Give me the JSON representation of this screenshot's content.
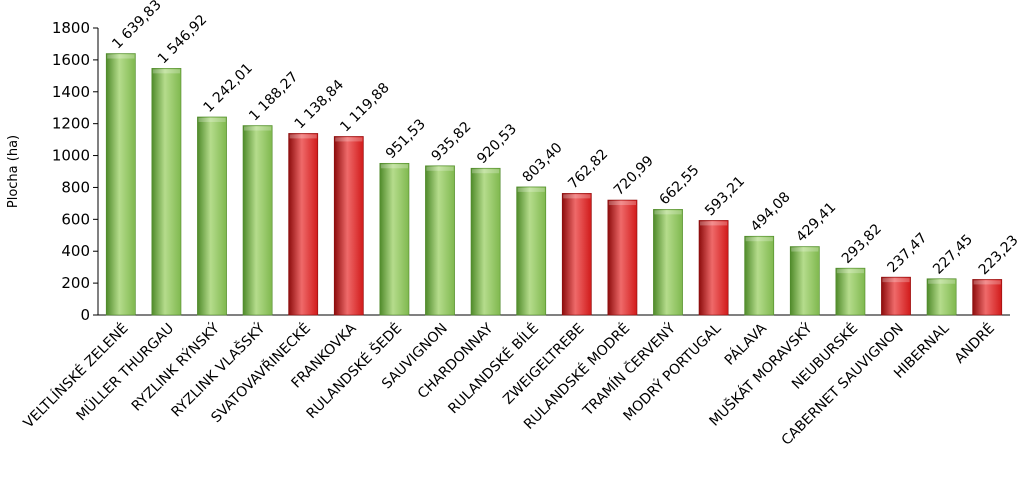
{
  "chart_data": {
    "type": "bar",
    "ylabel": "Plocha (ha)",
    "ylim": [
      0,
      1800
    ],
    "yticks": [
      "0",
      "200",
      "400",
      "600",
      "800",
      "1000",
      "1200",
      "1400",
      "1600",
      "1800"
    ],
    "grid": false,
    "categories": [
      "VELTLÍNSKÉ ZELENÉ",
      "MÜLLER THURGAU",
      "RYZLINK RÝNSKÝ",
      "RYZLINK VLAŠSKÝ",
      "SVATOVAVŘINECKÉ",
      "FRANKOVKA",
      "RULANDSKÉ ŠEDÉ",
      "SAUVIGNON",
      "CHARDONNAY",
      "RULANDSKÉ BÍLÉ",
      "ZWEIGELTREBE",
      "RULANDSKÉ MODRÉ",
      "TRAMÍN ČERVENÝ",
      "MODRÝ PORTUGAL",
      "PÁLAVA",
      "MUŠKÁT MORAVSKÝ",
      "NEUBURSKÉ",
      "CABERNET SAUVIGNON",
      "HIBERNAL",
      "ANDRÉ"
    ],
    "values": [
      1639.83,
      1546.92,
      1242.01,
      1188.27,
      1138.84,
      1119.88,
      951.53,
      935.82,
      920.53,
      803.4,
      762.82,
      720.99,
      662.55,
      593.21,
      494.08,
      429.41,
      293.82,
      237.47,
      227.45,
      223.23
    ],
    "data_labels": [
      "1 639,83",
      "1 546,92",
      "1 242,01",
      "1 188,27",
      "1 138,84",
      "1 119,88",
      "951,53",
      "935,82",
      "920,53",
      "803,40",
      "762,82",
      "720,99",
      "662,55",
      "593,21",
      "494,08",
      "429,41",
      "293,82",
      "237,47",
      "227,45",
      "223,23"
    ],
    "bar_color_group": [
      "white",
      "white",
      "white",
      "white",
      "red",
      "red",
      "white",
      "white",
      "white",
      "white",
      "red",
      "red",
      "white",
      "red",
      "white",
      "white",
      "white",
      "red",
      "white",
      "red"
    ],
    "colors": {
      "white": "#7fb84e",
      "white_light": "#b5dc8c",
      "white_dark": "#4f8a2a",
      "red": "#d11a1a",
      "red_light": "#ef6a6a",
      "red_dark": "#8c0c0c"
    }
  }
}
